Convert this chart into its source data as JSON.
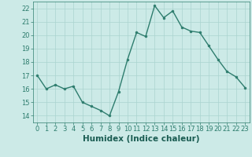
{
  "x": [
    0,
    1,
    2,
    3,
    4,
    5,
    6,
    7,
    8,
    9,
    10,
    11,
    12,
    13,
    14,
    15,
    16,
    17,
    18,
    19,
    20,
    21,
    22,
    23
  ],
  "y": [
    17,
    16,
    16.3,
    16,
    16.2,
    15,
    14.7,
    14.4,
    14,
    15.8,
    18.2,
    20.2,
    19.9,
    22.2,
    21.3,
    21.8,
    20.6,
    20.3,
    20.2,
    19.2,
    18.2,
    17.3,
    16.9,
    16.1
  ],
  "line_color": "#2e7d6e",
  "marker": "o",
  "marker_size": 2.0,
  "bg_color": "#cceae7",
  "grid_color": "#aad4d0",
  "xlabel": "Humidex (Indice chaleur)",
  "xlim": [
    -0.5,
    23.5
  ],
  "ylim": [
    13.5,
    22.5
  ],
  "yticks": [
    14,
    15,
    16,
    17,
    18,
    19,
    20,
    21,
    22
  ],
  "xticks": [
    0,
    1,
    2,
    3,
    4,
    5,
    6,
    7,
    8,
    9,
    10,
    11,
    12,
    13,
    14,
    15,
    16,
    17,
    18,
    19,
    20,
    21,
    22,
    23
  ],
  "tick_color": "#2e7d6e",
  "label_color": "#1a5c52",
  "xlabel_fontsize": 7.5,
  "tick_fontsize": 6.0,
  "line_width": 1.0
}
